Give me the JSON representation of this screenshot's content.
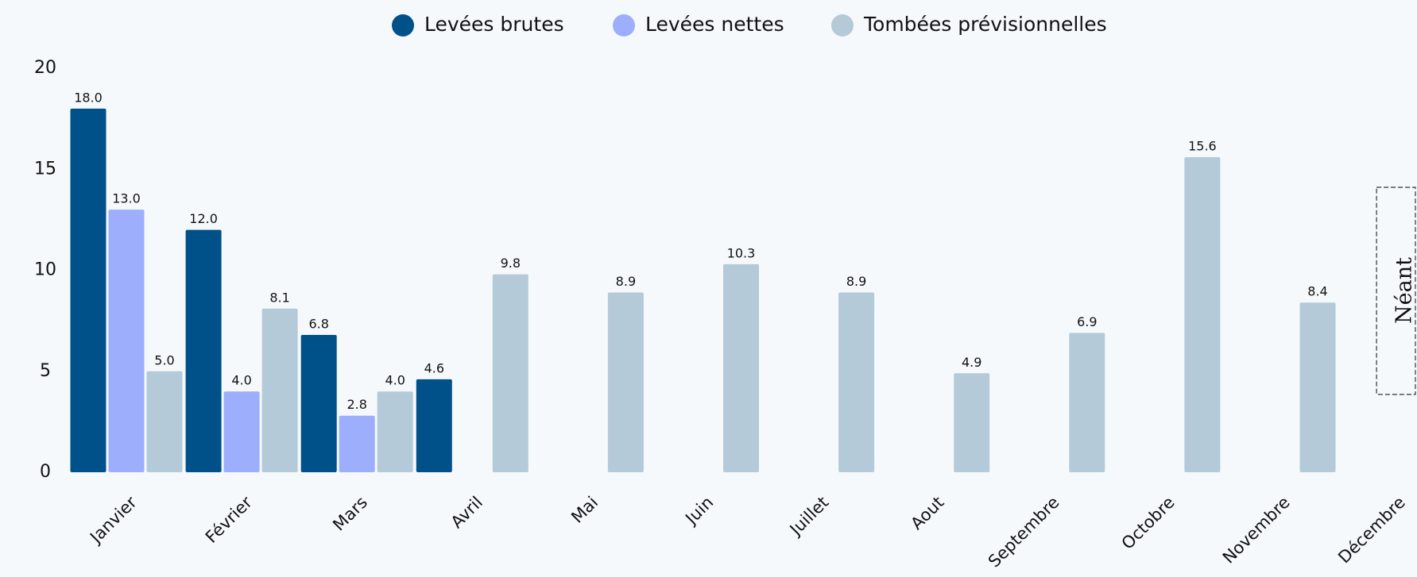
{
  "chart_data": {
    "type": "bar",
    "categories": [
      "Janvier",
      "Février",
      "Mars",
      "Avril",
      "Mai",
      "Juin",
      "Juillet",
      "Aout",
      "Septembre",
      "Octobre",
      "Novembre",
      "Décembre"
    ],
    "series": [
      {
        "name": "Levées brutes",
        "color": "#00508a",
        "values": [
          18,
          12,
          6.8,
          4.6,
          null,
          null,
          null,
          null,
          null,
          null,
          null,
          null
        ],
        "value_labels": [
          "18.0",
          "12.0",
          "6.8",
          "4.6",
          null,
          null,
          null,
          null,
          null,
          null,
          null,
          null
        ]
      },
      {
        "name": "Levées nettes",
        "color": "#9daefc",
        "values": [
          13,
          4,
          2.8,
          null,
          null,
          null,
          null,
          null,
          null,
          null,
          null,
          null
        ],
        "value_labels": [
          "13.0",
          "4.0",
          "2.8",
          null,
          null,
          null,
          null,
          null,
          null,
          null,
          null,
          null
        ]
      },
      {
        "name": "Tombées prévisionnelles",
        "color": "#b4cad9",
        "values": [
          5,
          8.1,
          4,
          9.8,
          8.9,
          10.3,
          8.9,
          4.9,
          6.9,
          15.6,
          8.4,
          null
        ],
        "value_labels": [
          "5.0",
          "8.1",
          "4.0",
          "9.8",
          "8.9",
          "10.3",
          "8.9",
          "4.9",
          "6.9",
          "15.6",
          "8.4",
          null
        ]
      }
    ],
    "ylim": [
      0,
      20
    ],
    "yticks": [
      0,
      5,
      10,
      15,
      20
    ],
    "grid": false,
    "legend": "top",
    "annotation": {
      "category": 11,
      "text": "Néant"
    }
  }
}
